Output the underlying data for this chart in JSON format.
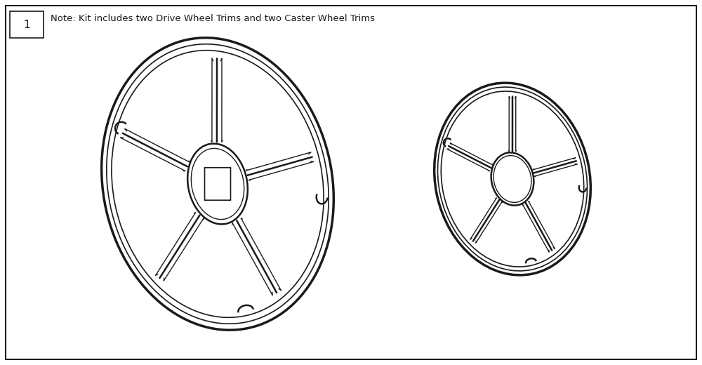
{
  "background_color": "#ffffff",
  "line_color": "#1a1a1a",
  "note_text": "Note: Kit includes two Drive Wheel Trims and two Caster Wheel Trims",
  "item_number": "1",
  "note_fontsize": 9.5,
  "item_fontsize": 11,
  "fig_width": 10.0,
  "fig_height": 5.2,
  "dpi": 100
}
